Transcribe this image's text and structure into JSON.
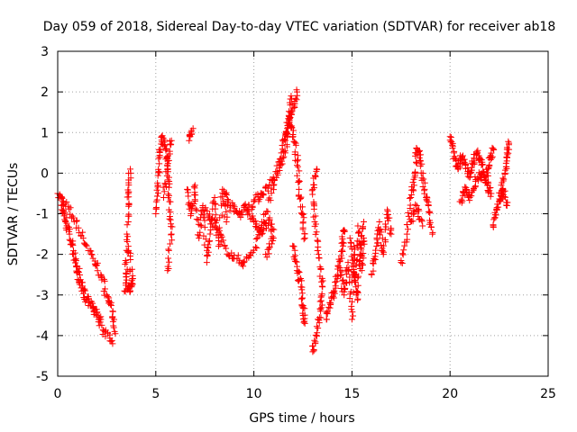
{
  "chart_data": {
    "type": "scatter",
    "title": "Day 059 of 2018, Sidereal Day-to-day VTEC variation (SDTVAR) for receiver ab18",
    "xlabel": "GPS time / hours",
    "ylabel": "SDTVAR / TECUs",
    "xlim": [
      0,
      25
    ],
    "ylim": [
      -5,
      3
    ],
    "xticks": [
      0,
      5,
      10,
      15,
      20,
      25
    ],
    "yticks": [
      -5,
      -4,
      -3,
      -2,
      -1,
      0,
      1,
      2,
      3
    ],
    "grid": true,
    "marker": "plus",
    "color": "#ff0000",
    "series": [
      {
        "name": "SDTVAR",
        "tracks": [
          [
            [
              0.0,
              -0.5
            ],
            [
              0.3,
              -0.7
            ],
            [
              0.8,
              -1.1
            ],
            [
              1.3,
              -1.6
            ],
            [
              1.8,
              -2.1
            ],
            [
              2.2,
              -2.5
            ],
            [
              2.5,
              -3.0
            ],
            [
              2.8,
              -3.4
            ],
            [
              2.9,
              -3.9
            ]
          ],
          [
            [
              0.1,
              -0.6
            ],
            [
              0.4,
              -1.2
            ],
            [
              0.8,
              -2.0
            ],
            [
              1.1,
              -2.7
            ],
            [
              1.5,
              -3.1
            ],
            [
              2.0,
              -3.5
            ],
            [
              2.4,
              -3.9
            ],
            [
              2.8,
              -4.2
            ]
          ],
          [
            [
              0.2,
              -0.9
            ],
            [
              0.6,
              -1.5
            ],
            [
              1.0,
              -2.3
            ],
            [
              1.3,
              -2.9
            ],
            [
              1.8,
              -3.3
            ],
            [
              2.2,
              -3.6
            ]
          ],
          [
            [
              3.4,
              -2.9
            ],
            [
              3.5,
              -2.2
            ],
            [
              3.6,
              -1.2
            ],
            [
              3.6,
              -0.5
            ],
            [
              3.7,
              0.1
            ]
          ],
          [
            [
              3.5,
              -2.7
            ],
            [
              3.7,
              -2.9
            ],
            [
              3.8,
              -2.6
            ],
            [
              3.6,
              -1.8
            ]
          ],
          [
            [
              5.0,
              -1.0
            ],
            [
              5.1,
              -0.3
            ],
            [
              5.2,
              0.4
            ],
            [
              5.3,
              0.9
            ],
            [
              5.5,
              0.6
            ],
            [
              5.6,
              0.1
            ],
            [
              5.7,
              -0.7
            ],
            [
              5.8,
              -1.5
            ],
            [
              5.6,
              -2.4
            ]
          ],
          [
            [
              5.4,
              -0.6
            ],
            [
              5.6,
              0.3
            ],
            [
              5.8,
              0.8
            ]
          ],
          [
            [
              6.6,
              -0.4
            ],
            [
              6.8,
              -1.0
            ],
            [
              7.0,
              -0.3
            ],
            [
              7.2,
              -1.6
            ],
            [
              7.4,
              -0.8
            ],
            [
              7.6,
              -2.2
            ],
            [
              7.8,
              -1.4
            ],
            [
              8.0,
              -0.6
            ],
            [
              8.2,
              -1.8
            ],
            [
              8.4,
              -0.4
            ],
            [
              8.6,
              -1.2
            ]
          ],
          [
            [
              6.7,
              0.8
            ],
            [
              6.9,
              1.1
            ]
          ],
          [
            [
              8.5,
              -0.5
            ],
            [
              8.8,
              -0.8
            ],
            [
              9.2,
              -1.0
            ],
            [
              9.6,
              -0.9
            ],
            [
              10.0,
              -0.7
            ],
            [
              10.4,
              -0.5
            ],
            [
              10.8,
              -0.3
            ],
            [
              11.2,
              0.0
            ],
            [
              11.6,
              0.5
            ],
            [
              11.8,
              1.3
            ],
            [
              11.9,
              1.9
            ]
          ],
          [
            [
              7.5,
              -0.9
            ],
            [
              8.0,
              -1.3
            ],
            [
              8.5,
              -1.8
            ],
            [
              9.0,
              -2.1
            ],
            [
              9.5,
              -2.2
            ],
            [
              10.0,
              -1.9
            ],
            [
              10.5,
              -1.2
            ],
            [
              11.0,
              -0.3
            ],
            [
              11.4,
              0.5
            ],
            [
              11.7,
              1.1
            ],
            [
              12.0,
              1.6
            ],
            [
              12.2,
              2.0
            ]
          ],
          [
            [
              9.5,
              -0.8
            ],
            [
              10.0,
              -1.2
            ],
            [
              10.4,
              -1.5
            ],
            [
              10.8,
              -1.1
            ],
            [
              11.0,
              -1.6
            ],
            [
              10.6,
              -2.0
            ]
          ],
          [
            [
              11.6,
              0.8
            ],
            [
              11.8,
              1.4
            ],
            [
              12.0,
              0.9
            ],
            [
              12.2,
              0.3
            ],
            [
              12.3,
              -0.4
            ],
            [
              12.5,
              -1.0
            ],
            [
              12.6,
              -1.6
            ]
          ],
          [
            [
              12.0,
              -1.8
            ],
            [
              12.2,
              -2.3
            ],
            [
              12.4,
              -2.8
            ],
            [
              12.5,
              -3.3
            ],
            [
              12.6,
              -3.7
            ]
          ],
          [
            [
              13.0,
              -4.4
            ],
            [
              13.2,
              -4.0
            ],
            [
              13.4,
              -3.4
            ],
            [
              13.5,
              -2.8
            ],
            [
              13.3,
              -2.0
            ],
            [
              13.1,
              -1.2
            ],
            [
              13.0,
              -0.4
            ],
            [
              13.2,
              0.1
            ]
          ],
          [
            [
              13.7,
              -3.6
            ],
            [
              13.9,
              -3.2
            ],
            [
              14.1,
              -2.9
            ],
            [
              14.3,
              -2.3
            ],
            [
              14.5,
              -1.9
            ],
            [
              14.6,
              -1.4
            ]
          ],
          [
            [
              14.4,
              -2.4
            ],
            [
              14.6,
              -3.0
            ],
            [
              14.8,
              -2.2
            ],
            [
              15.0,
              -3.6
            ],
            [
              15.1,
              -1.8
            ],
            [
              15.2,
              -2.8
            ],
            [
              15.3,
              -1.3
            ],
            [
              15.5,
              -2.4
            ],
            [
              15.6,
              -1.6
            ]
          ],
          [
            [
              14.9,
              -1.6
            ],
            [
              15.1,
              -2.5
            ],
            [
              15.3,
              -3.1
            ],
            [
              15.4,
              -2.0
            ],
            [
              15.6,
              -1.2
            ]
          ],
          [
            [
              16.0,
              -2.5
            ],
            [
              16.2,
              -1.9
            ],
            [
              16.4,
              -1.2
            ],
            [
              16.6,
              -2.0
            ],
            [
              16.8,
              -0.9
            ],
            [
              17.0,
              -1.5
            ]
          ],
          [
            [
              17.5,
              -2.2
            ],
            [
              17.8,
              -1.5
            ],
            [
              18.0,
              -0.6
            ],
            [
              18.2,
              -0.1
            ],
            [
              18.3,
              0.6
            ],
            [
              18.5,
              0.3
            ],
            [
              18.7,
              -0.4
            ],
            [
              18.9,
              -0.8
            ],
            [
              19.1,
              -1.5
            ]
          ],
          [
            [
              18.0,
              -1.2
            ],
            [
              18.3,
              -0.8
            ],
            [
              18.6,
              -1.3
            ]
          ],
          [
            [
              20.0,
              0.9
            ],
            [
              20.2,
              0.5
            ],
            [
              20.4,
              0.1
            ],
            [
              20.6,
              0.4
            ],
            [
              20.8,
              0.2
            ],
            [
              21.0,
              -0.1
            ],
            [
              21.2,
              0.3
            ],
            [
              21.4,
              0.5
            ],
            [
              21.6,
              0.2
            ],
            [
              21.8,
              -0.1
            ],
            [
              22.0,
              0.2
            ],
            [
              22.2,
              0.6
            ]
          ],
          [
            [
              20.5,
              -0.7
            ],
            [
              20.8,
              -0.4
            ],
            [
              21.0,
              -0.6
            ],
            [
              21.3,
              -0.2
            ],
            [
              21.6,
              0.0
            ],
            [
              21.9,
              -0.3
            ],
            [
              22.1,
              -0.5
            ]
          ],
          [
            [
              22.2,
              -1.3
            ],
            [
              22.4,
              -0.9
            ],
            [
              22.6,
              -0.5
            ],
            [
              22.8,
              0.0
            ],
            [
              22.9,
              0.5
            ],
            [
              23.0,
              0.7
            ]
          ],
          [
            [
              22.5,
              -0.7
            ],
            [
              22.7,
              -0.4
            ],
            [
              22.9,
              -0.8
            ]
          ]
        ]
      }
    ]
  }
}
